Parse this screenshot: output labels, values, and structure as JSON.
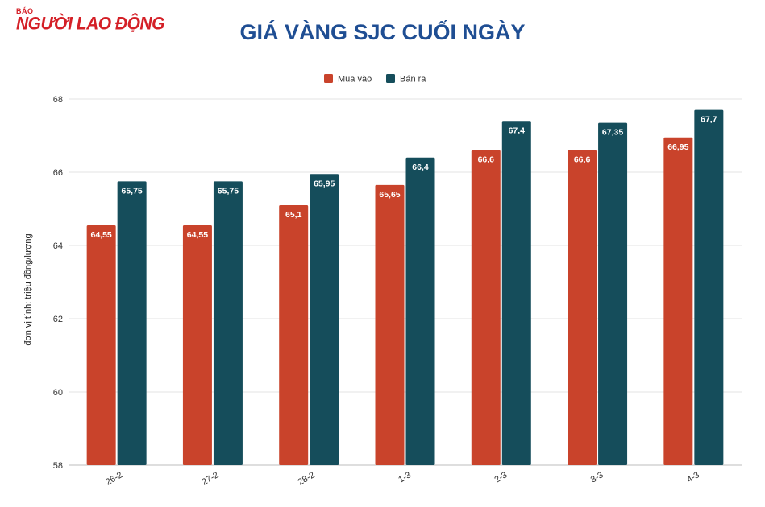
{
  "brand": {
    "small": "BÁO",
    "main": "NGƯỜI LAO ĐỘNG"
  },
  "title": "GIÁ VÀNG SJC CUỐI NGÀY",
  "colors": {
    "mua": "#c9432b",
    "ban": "#154d5b",
    "grid": "#e3e3e3",
    "title": "#1f4e93"
  },
  "chart_data": {
    "type": "bar",
    "categories": [
      "26-2",
      "27-2",
      "28-2",
      "1-3",
      "2-3",
      "3-3",
      "4-3"
    ],
    "series": [
      {
        "name": "Mua vào",
        "values": [
          64.55,
          64.55,
          65.1,
          65.65,
          66.6,
          66.6,
          66.95
        ],
        "labels": [
          "64,55",
          "64,55",
          "65,1",
          "65,65",
          "66,6",
          "66,6",
          "66,95"
        ]
      },
      {
        "name": "Bán ra",
        "values": [
          65.75,
          65.75,
          65.95,
          66.4,
          67.4,
          67.35,
          67.7
        ],
        "labels": [
          "65,75",
          "65,75",
          "65,95",
          "66,4",
          "67,4",
          "67,35",
          "67,7"
        ]
      }
    ],
    "ylabel": "đơn vị tính: triệu đồng/lượng",
    "ylim": [
      58,
      68
    ],
    "yticks": [
      58,
      60,
      62,
      64,
      66,
      68
    ],
    "grid": true,
    "legend_position": "top-center"
  }
}
